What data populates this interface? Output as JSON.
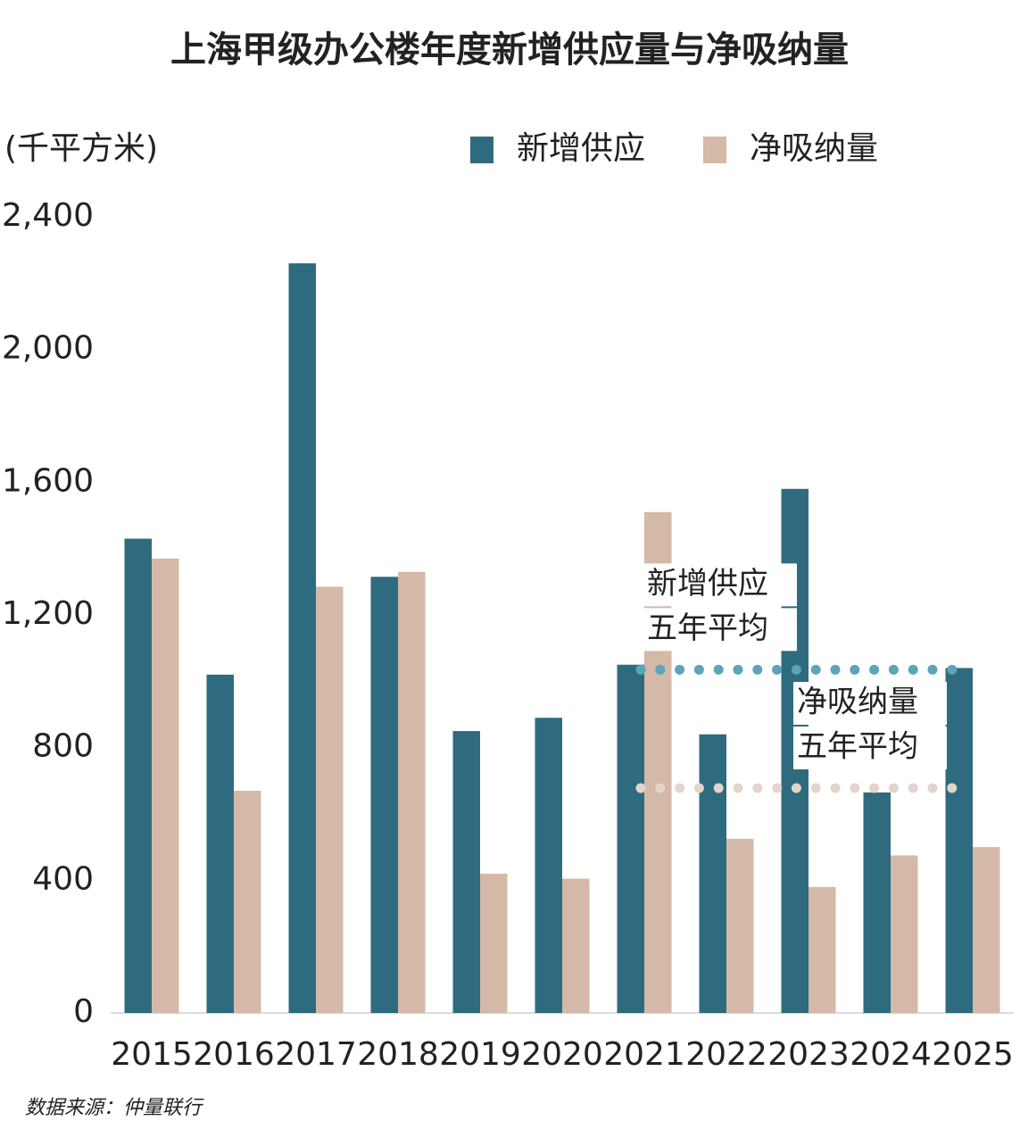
{
  "chart_data": {
    "type": "bar",
    "title": "上海甲级办公楼年度新增供应量与净吸纳量",
    "y_label": "(千平方米)",
    "categories": [
      "2015",
      "2016",
      "2017",
      "2018",
      "2019",
      "2020",
      "2021",
      "2022",
      "2023",
      "2024",
      "2025"
    ],
    "series": [
      {
        "name": "新增供应",
        "color": "#2f6b7e",
        "values": [
          1430,
          1020,
          2260,
          1315,
          850,
          890,
          1050,
          840,
          1580,
          665,
          1040
        ]
      },
      {
        "name": "净吸纳量",
        "color": "#d4b8a8",
        "values": [
          1370,
          670,
          1285,
          1330,
          420,
          405,
          1510,
          525,
          380,
          475,
          500
        ]
      }
    ],
    "ylim": [
      0,
      2400
    ],
    "yticks": [
      0,
      400,
      800,
      {
        "value": 1200,
        "label": "1,200"
      },
      {
        "value": 1600,
        "label": "1,600"
      },
      {
        "value": 2000,
        "label": "2,000"
      },
      {
        "value": 2400,
        "label": "2,400"
      }
    ],
    "annotations": [
      {
        "lines": [
          "新增供应",
          "五年平均"
        ],
        "value": 1035,
        "color": "#5aa5b8"
      },
      {
        "lines": [
          "净吸纳量",
          "五年平均"
        ],
        "value": 678,
        "color": "#e3d5cc"
      }
    ],
    "source": "数据来源：仲量联行"
  }
}
